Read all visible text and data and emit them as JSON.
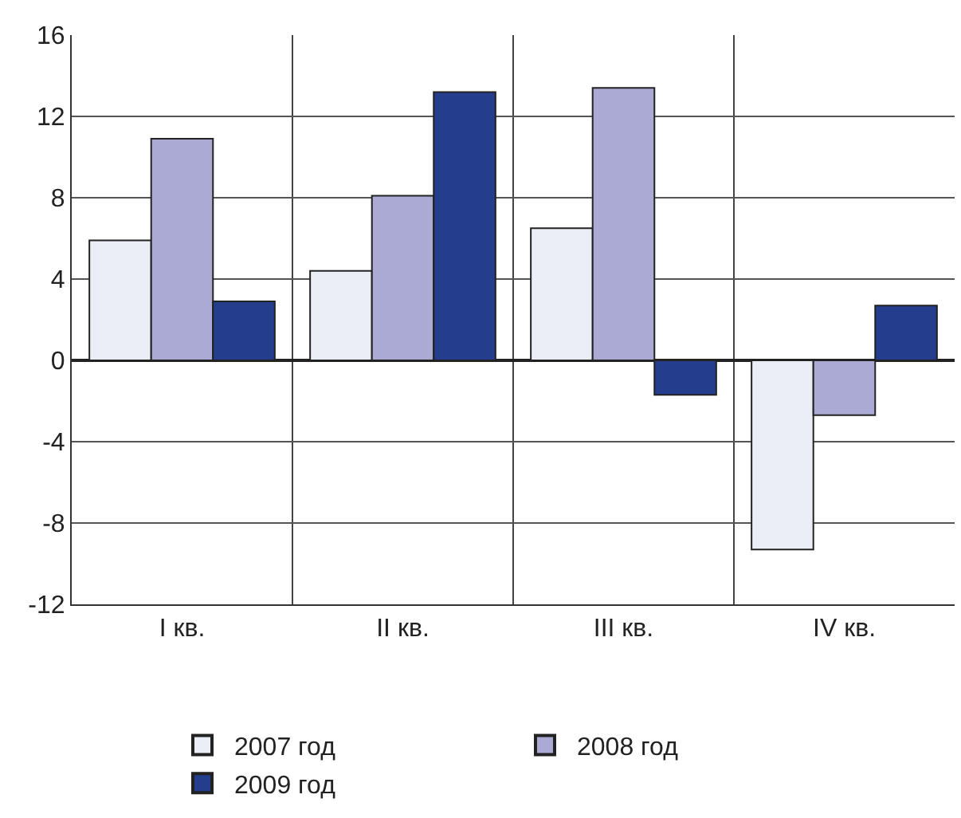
{
  "chart_data": {
    "type": "bar",
    "categories": [
      "I кв.",
      "II кв.",
      "III кв.",
      "IV кв."
    ],
    "series": [
      {
        "name": "2007 год",
        "color": "#eceef7",
        "values": [
          5.9,
          4.4,
          6.5,
          -9.3
        ]
      },
      {
        "name": "2008 год",
        "color": "#aaaad4",
        "values": [
          10.9,
          8.1,
          13.4,
          -2.7
        ]
      },
      {
        "name": "2009 год",
        "color": "#243d8c",
        "values": [
          2.9,
          13.2,
          -1.7,
          2.7
        ]
      }
    ],
    "ylim": [
      -12,
      16
    ],
    "yticks": [
      -12,
      -8,
      -4,
      0,
      4,
      8,
      12,
      16
    ],
    "grid": true,
    "legend": "bottom"
  }
}
